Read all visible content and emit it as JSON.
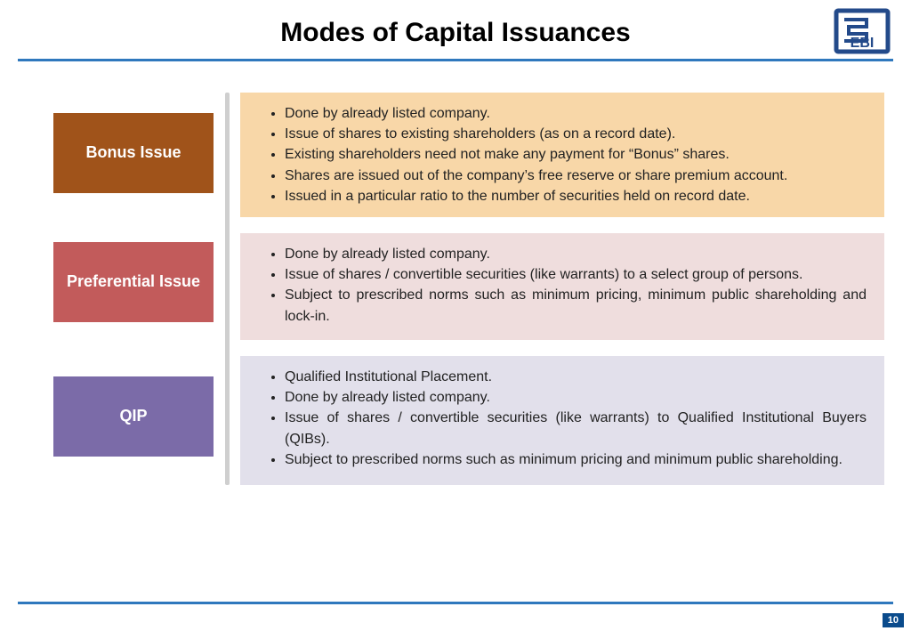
{
  "title": "Modes of Capital Issuances",
  "page_number": "10",
  "colors": {
    "rule": "#2f78bd",
    "footer_badge": "#0a4b8c"
  },
  "logo": {
    "stroke": "#234a8a",
    "text": "SEBI"
  },
  "rows": [
    {
      "label": "Bonus Issue",
      "label_bg": "#a0531a",
      "desc_bg": "#f8d7a8",
      "height": 135,
      "justify": false,
      "bullets": [
        "Done by already listed company.",
        "Issue of shares to existing shareholders (as on a record date).",
        "Existing shareholders need not make any payment for “Bonus” shares.",
        "Shares are issued out of the company’s free reserve or share premium account.",
        "Issued in a particular ratio to the number of securities held on  record date."
      ]
    },
    {
      "label": "Preferential Issue",
      "label_bg": "#c25b5b",
      "desc_bg": "#efdddd",
      "height": 120,
      "justify": true,
      "bullets": [
        "Done by already listed company.",
        "Issue of shares / convertible securities (like warrants) to a select group of persons.",
        "Subject to prescribed norms such as minimum pricing, minimum public shareholding and lock-in."
      ]
    },
    {
      "label": "QIP",
      "label_bg": "#7b6ba8",
      "desc_bg": "#e2e0eb",
      "height": 145,
      "justify": true,
      "bullets": [
        "Qualified Institutional Placement.",
        "Done by already listed company.",
        "Issue of shares / convertible securities (like warrants) to Qualified Institutional Buyers (QIBs).",
        "Subject to prescribed norms such as minimum pricing and minimum public shareholding."
      ]
    }
  ]
}
